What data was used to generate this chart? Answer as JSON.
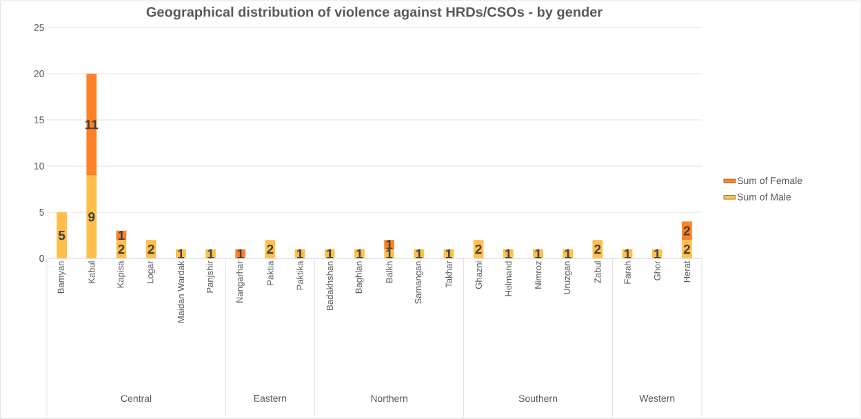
{
  "chart_data": {
    "type": "bar",
    "title": "Geographical distribution of violence against HRDs/CSOs - by gender",
    "categories": [
      "Bamyan",
      "Kabul",
      "Kapisa",
      "Logar",
      "Maidan Wardak",
      "Panjshir",
      "Nangarhar",
      "Paktia",
      "Paktika",
      "Badakhshan",
      "Baghlan",
      "Balkh",
      "Samangan",
      "Takhar",
      "Ghazni",
      "Helmand",
      "Nimroz",
      "Uruzgan",
      "Zabul",
      "Farah",
      "Ghor",
      "Herat"
    ],
    "series": [
      {
        "name": "Sum of Male",
        "color": "#ffbf4a",
        "values": [
          5,
          9,
          2,
          2,
          1,
          1,
          null,
          2,
          1,
          1,
          1,
          1,
          1,
          1,
          2,
          1,
          1,
          1,
          2,
          1,
          1,
          2
        ]
      },
      {
        "name": "Sum of Female",
        "color": "#ff8126",
        "values": [
          null,
          11,
          1,
          null,
          null,
          null,
          1,
          null,
          null,
          null,
          null,
          1,
          null,
          null,
          null,
          null,
          null,
          null,
          null,
          null,
          null,
          2
        ]
      }
    ],
    "stacked": true,
    "data_labels": true,
    "ylim": [
      0,
      25
    ],
    "yticks": [
      0,
      5,
      10,
      15,
      20,
      25
    ],
    "grid": "y",
    "legend": "right",
    "annotations": [
      "Central",
      "Eastern",
      "Northern",
      "Southern",
      "Western"
    ]
  }
}
